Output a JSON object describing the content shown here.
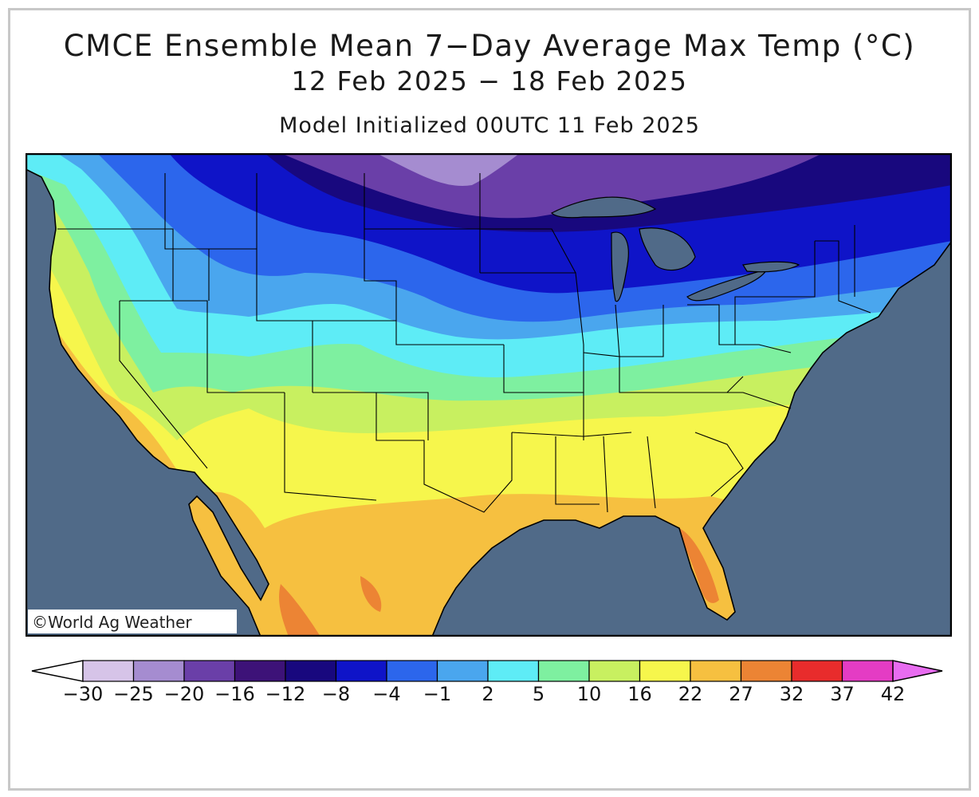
{
  "header": {
    "title": "CMCE Ensemble Mean 7−Day Average Max Temp (°C)",
    "date_range": "12 Feb 2025 − 18 Feb 2025",
    "subtitle": "Model Initialized 00UTC 11 Feb 2025"
  },
  "map": {
    "region": "Continental United States",
    "credit": "©World Ag Weather",
    "ocean_color": "#506a88",
    "land_outline_color": "#000000"
  },
  "legend": {
    "labels": [
      "−30",
      "−25",
      "−20",
      "−16",
      "−12",
      "−8",
      "−4",
      "−1",
      "2",
      "5",
      "10",
      "16",
      "22",
      "27",
      "32",
      "37",
      "42"
    ],
    "colors": [
      "#d6c4e8",
      "#a58cd0",
      "#6a3fa8",
      "#3d1278",
      "#18087e",
      "#0f14c8",
      "#2c66ec",
      "#4aa6ee",
      "#5eecf6",
      "#7ef0a0",
      "#c8f060",
      "#f6f64c",
      "#f6c040",
      "#ec8434",
      "#e82c2c",
      "#e43cc4"
    ],
    "under_color": "#ffffff",
    "over_color": "#e86cf0"
  },
  "chart_data": {
    "type": "heatmap",
    "title": "CMCE Ensemble Mean 7−Day Average Max Temp (°C)",
    "period": "12 Feb 2025 − 18 Feb 2025",
    "init": "Model Initialized 00UTC 11 Feb 2025",
    "units": "°C",
    "levels": [
      -30,
      -25,
      -20,
      -16,
      -12,
      -8,
      -4,
      -1,
      2,
      5,
      10,
      16,
      22,
      27,
      32,
      37,
      42
    ]
  }
}
